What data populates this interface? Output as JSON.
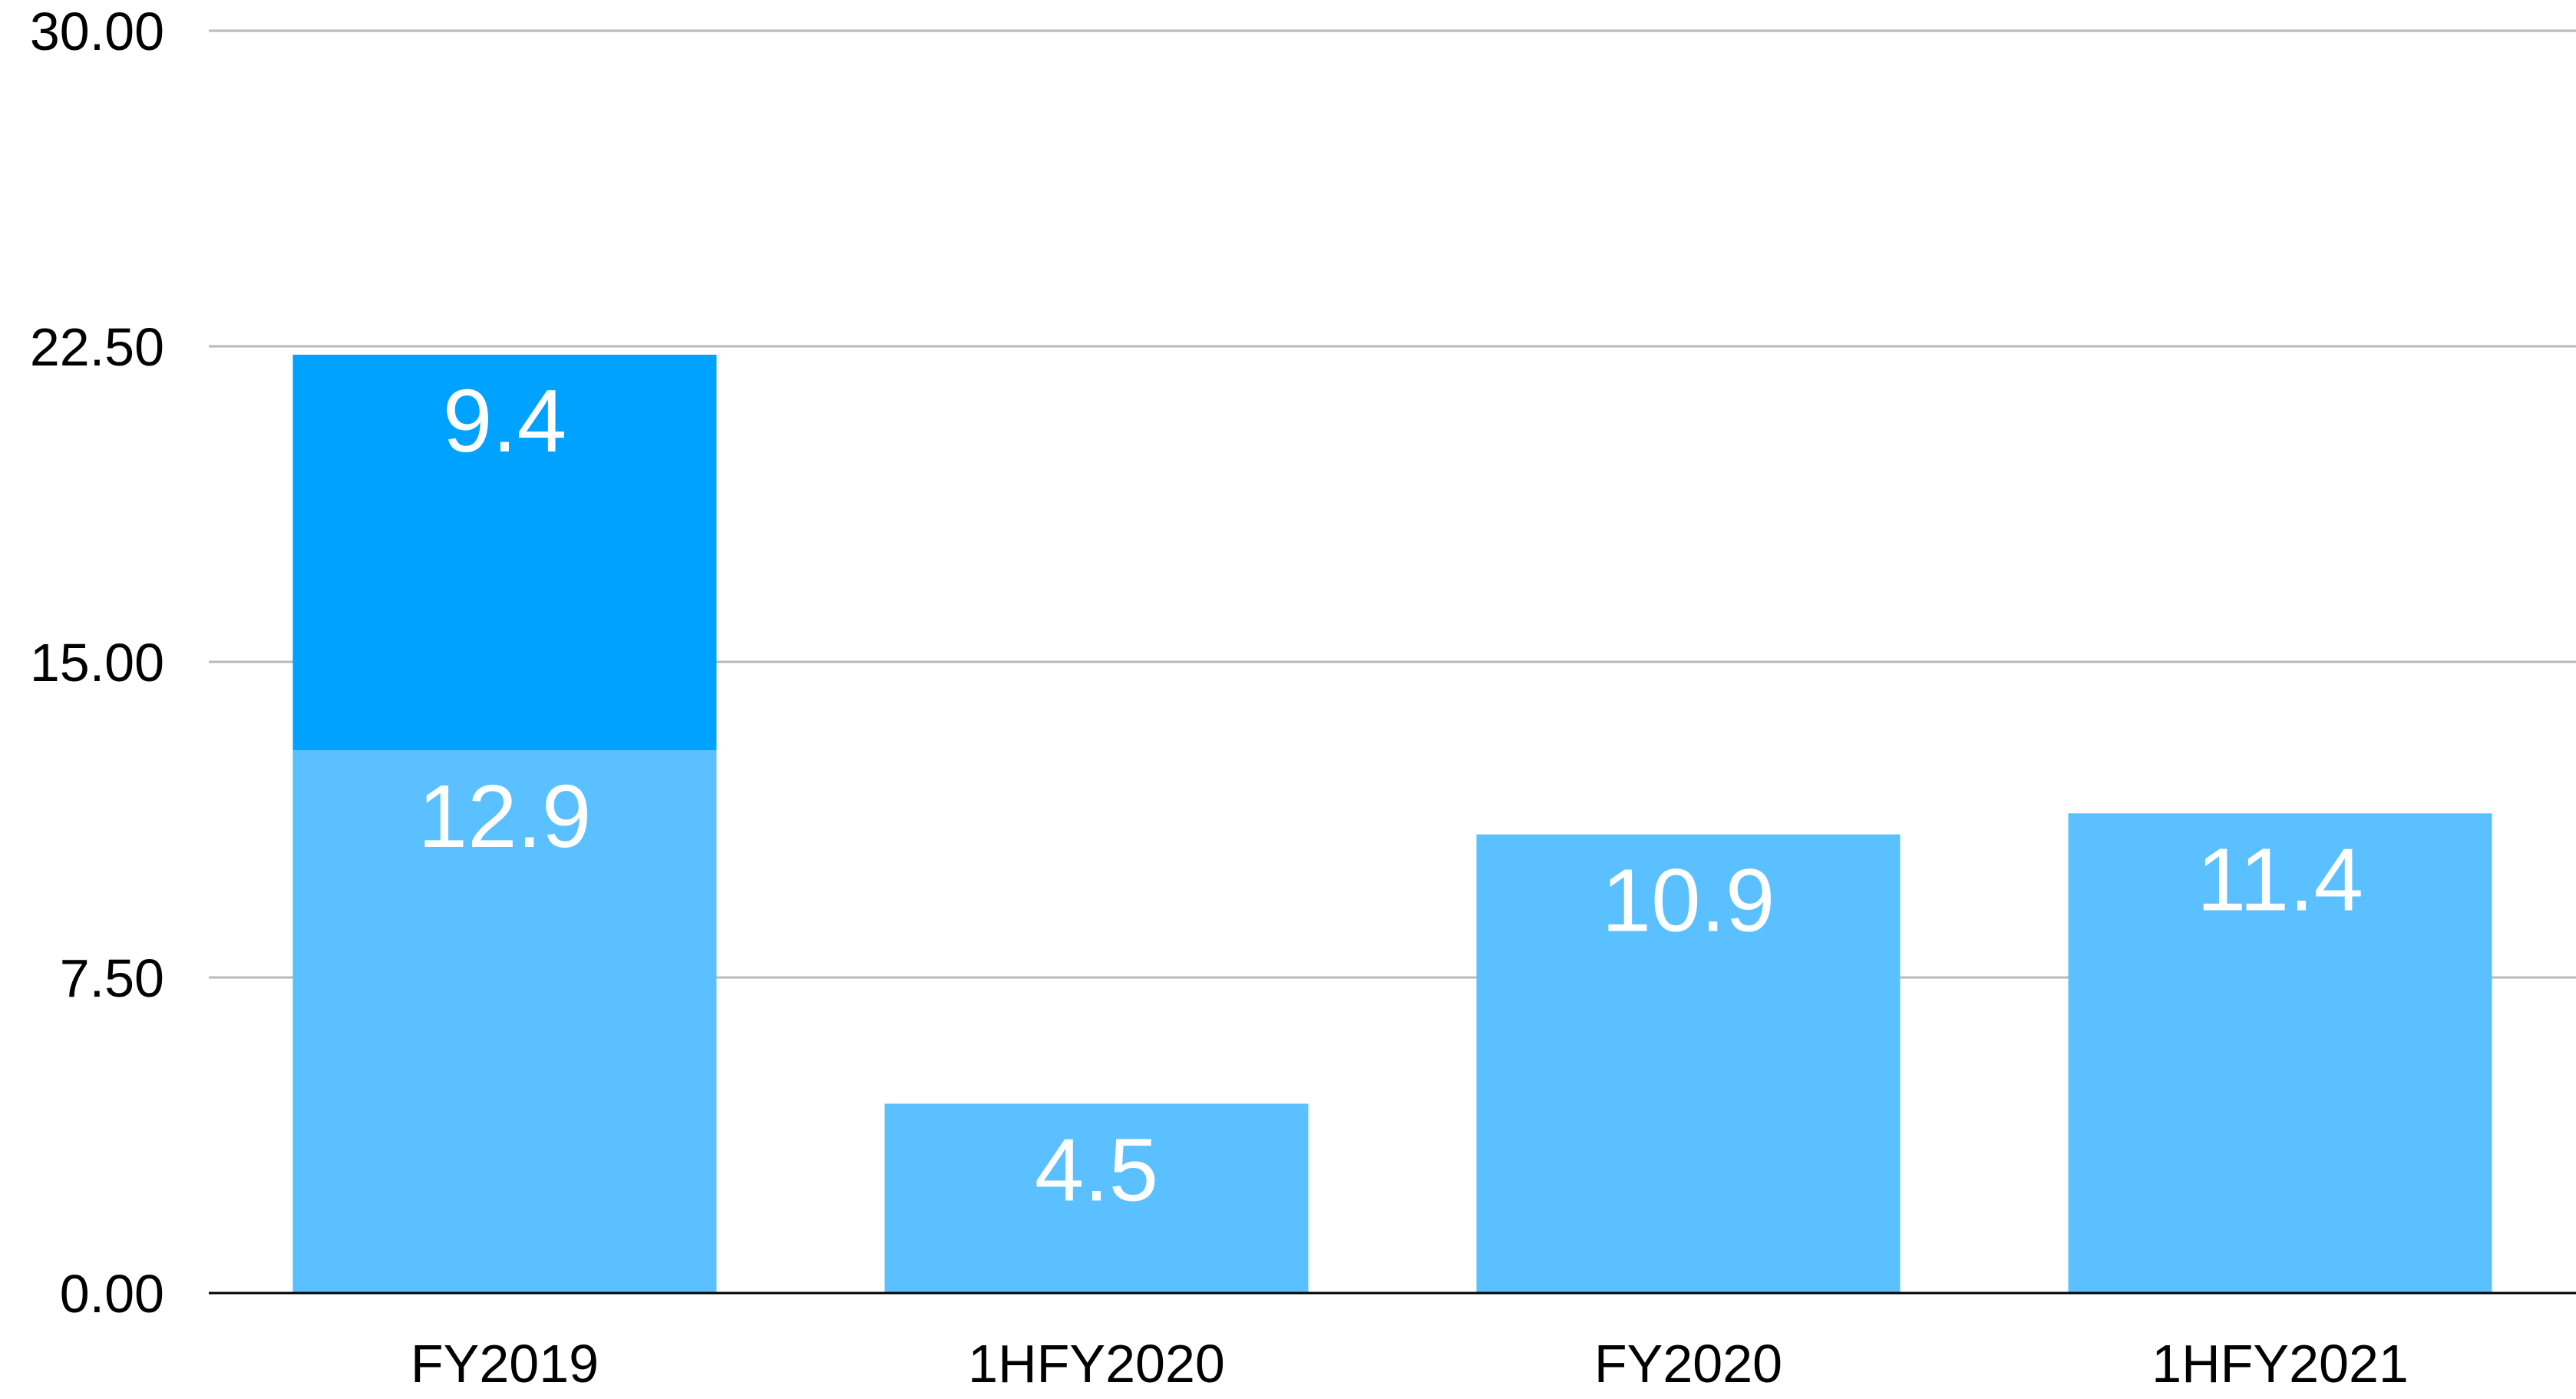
{
  "chart_data": {
    "type": "bar",
    "stacked": true,
    "categories": [
      "FY2019",
      "1HFY2020",
      "FY2020",
      "1HFY2021"
    ],
    "series": [
      {
        "values": [
          12.9,
          4.5,
          10.9,
          11.4
        ],
        "color": "#5ac0ff"
      },
      {
        "values": [
          9.4,
          null,
          null,
          null
        ],
        "color": "#00a2ff"
      }
    ],
    "data_labels": [
      [
        "12.9",
        "4.5",
        "10.9",
        "11.4"
      ],
      [
        "9.4",
        null,
        null,
        null
      ]
    ],
    "yticks": [
      "0.00",
      "7.50",
      "15.00",
      "22.50",
      "30.00"
    ],
    "ytick_values": [
      0,
      7.5,
      15,
      22.5,
      30
    ],
    "ylim": [
      0,
      30
    ],
    "grid": true,
    "legend": "none"
  }
}
